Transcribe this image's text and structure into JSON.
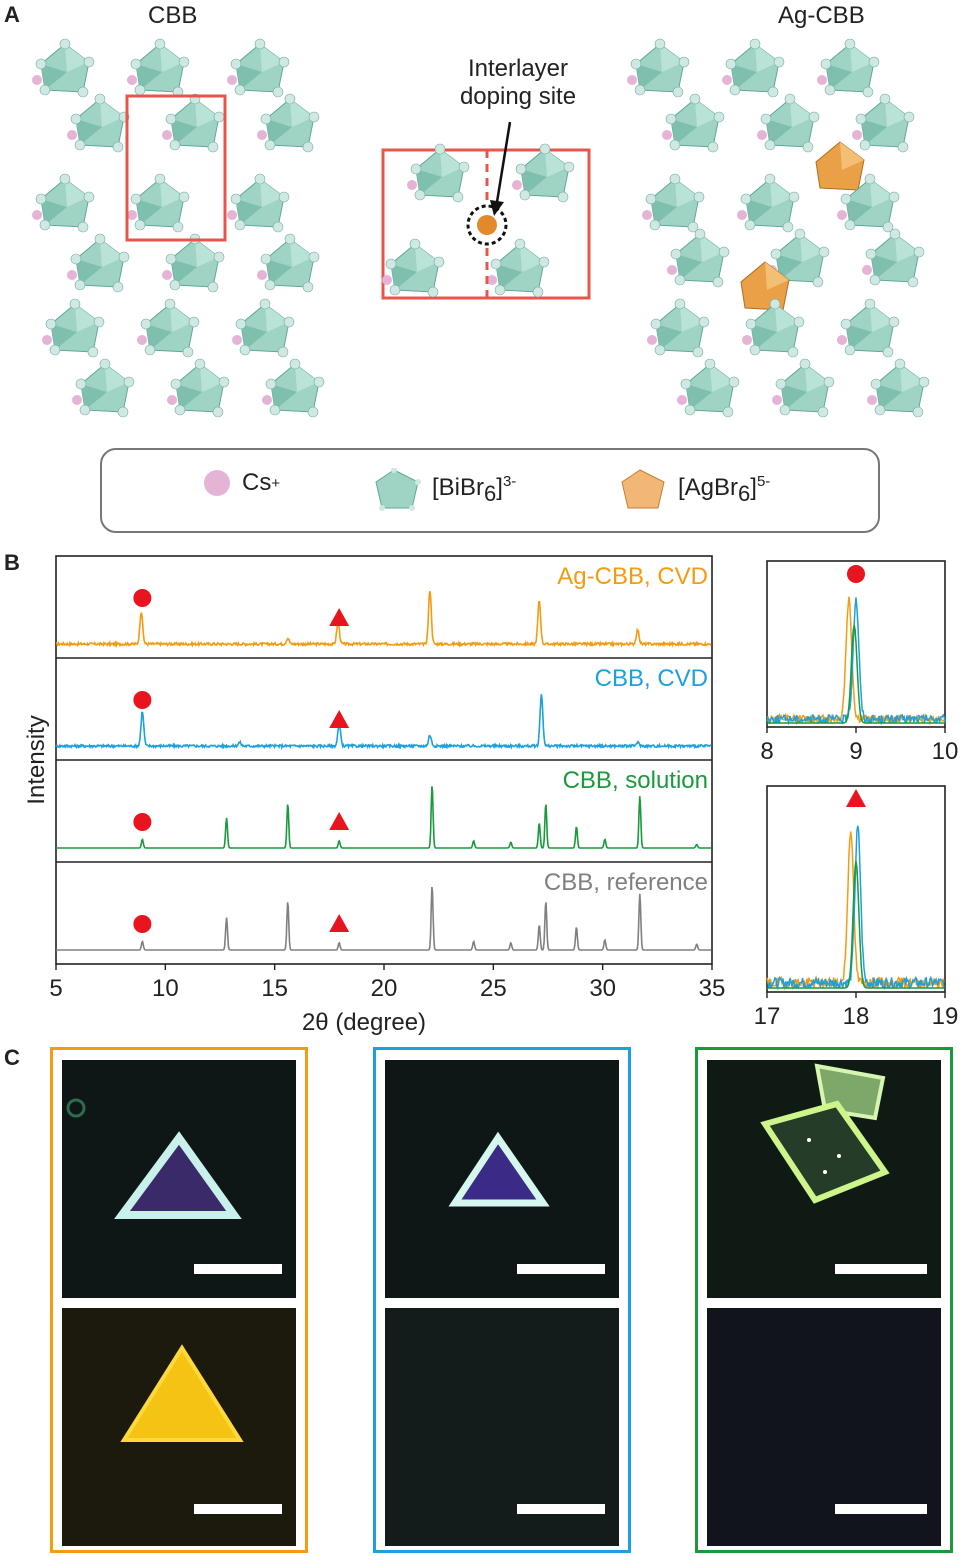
{
  "panels": {
    "a": "A",
    "b": "B",
    "c": "C"
  },
  "structures": {
    "left_title": "CBB",
    "right_title": "Ag-CBB",
    "center_annotation_line1": "Interlayer",
    "center_annotation_line2": "doping site"
  },
  "legend": {
    "cs": "Cs",
    "cs_sup": "+",
    "bi_pre": "[BiBr",
    "bi_sub": "6",
    "bi_post": "]",
    "bi_sup": "3-",
    "ag_pre": "[AgBr",
    "ag_sub": "6",
    "ag_post": "]",
    "ag_sup": "5-"
  },
  "colors": {
    "ag_cbb_cvd": "#f39c12",
    "cbb_cvd": "#1ea0dc",
    "cbb_solution": "#1a9a3c",
    "cbb_reference": "#808080",
    "marker": "#e8141e",
    "octahedron_bi": "#9fd4c4",
    "octahedron_ag": "#e9a046",
    "cs_atom": "#e4b3d6",
    "frame": "#e8554b"
  },
  "chart_data": [
    {
      "type": "line",
      "title": "",
      "xlabel": "2θ (degree)",
      "ylabel": "Intensity",
      "xlim": [
        5,
        35
      ],
      "xticks": [
        5,
        10,
        15,
        20,
        25,
        30,
        35
      ],
      "series": [
        {
          "name": "Ag-CBB, CVD",
          "peaks": [
            [
              8.9,
              0.45
            ],
            [
              15.6,
              0.08
            ],
            [
              17.9,
              0.3
            ],
            [
              22.1,
              0.75
            ],
            [
              27.1,
              0.6
            ],
            [
              31.6,
              0.2
            ]
          ]
        },
        {
          "name": "CBB, CVD",
          "peaks": [
            [
              8.95,
              0.48
            ],
            [
              13.4,
              0.05
            ],
            [
              17.95,
              0.3
            ],
            [
              22.1,
              0.15
            ],
            [
              27.2,
              0.72
            ],
            [
              31.6,
              0.05
            ]
          ]
        },
        {
          "name": "CBB, solution",
          "peaks": [
            [
              8.95,
              0.12
            ],
            [
              12.8,
              0.42
            ],
            [
              15.6,
              0.62
            ],
            [
              17.95,
              0.1
            ],
            [
              22.2,
              0.88
            ],
            [
              24.1,
              0.1
            ],
            [
              25.8,
              0.08
            ],
            [
              27.1,
              0.35
            ],
            [
              27.4,
              0.62
            ],
            [
              28.8,
              0.3
            ],
            [
              30.1,
              0.12
            ],
            [
              31.7,
              0.72
            ],
            [
              34.3,
              0.05
            ]
          ]
        },
        {
          "name": "CBB, reference",
          "peaks": [
            [
              8.95,
              0.12
            ],
            [
              12.8,
              0.45
            ],
            [
              15.6,
              0.68
            ],
            [
              17.95,
              0.1
            ],
            [
              22.2,
              0.9
            ],
            [
              24.1,
              0.12
            ],
            [
              25.8,
              0.1
            ],
            [
              27.1,
              0.35
            ],
            [
              27.4,
              0.68
            ],
            [
              28.8,
              0.32
            ],
            [
              30.1,
              0.14
            ],
            [
              31.7,
              0.78
            ],
            [
              34.3,
              0.08
            ]
          ]
        }
      ],
      "markers": {
        "circle_x": 8.95,
        "triangle_x": 17.95
      }
    },
    {
      "type": "line",
      "title": "",
      "xlim": [
        8,
        10
      ],
      "xticks": [
        8,
        9,
        10
      ],
      "series": [
        {
          "name": "Ag-CBB, CVD",
          "peak_x": 8.92
        },
        {
          "name": "CBB, CVD",
          "peak_x": 9.0
        },
        {
          "name": "CBB, solution",
          "peak_x": 8.98
        }
      ]
    },
    {
      "type": "line",
      "title": "",
      "xlim": [
        17,
        19
      ],
      "xticks": [
        17,
        18,
        19
      ],
      "series": [
        {
          "name": "Ag-CBB, CVD",
          "peak_x": 17.94
        },
        {
          "name": "CBB, CVD",
          "peak_x": 18.02
        },
        {
          "name": "CBB, solution",
          "peak_x": 18.0
        }
      ]
    }
  ]
}
